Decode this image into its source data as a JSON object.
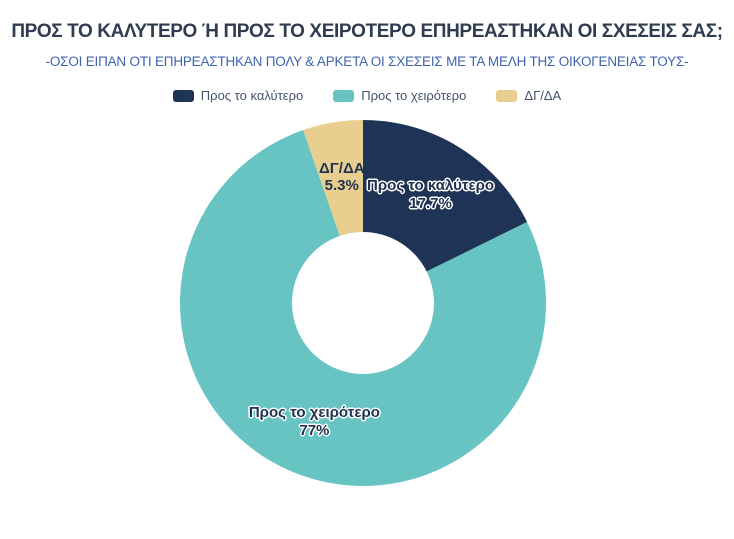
{
  "header": {
    "title": "ΠΡΟΣ ΤΟ ΚΑΛΥΤΕΡΟ Ή ΠΡΟΣ ΤΟ ΧΕΙΡΟΤΕΡΟ ΕΠΗΡΕΑΣΤΗΚΑΝ ΟΙ ΣΧΕΣΕΙΣ ΣΑΣ;",
    "subtitle": "-ΟΣΟΙ ΕΙΠΑΝ ΟΤΙ ΕΠΗΡΕΑΣΤΗΚΑΝ ΠΟΛΥ & ΑΡΚΕΤΑ ΟΙ ΣΧΕΣΕΙΣ ΜΕ ΤΑ ΜΕΛΗ ΤΗΣ ΟΙΚΟΓΕΝΕΙΑΣ ΤΟΥΣ-",
    "title_color": "#303c50",
    "subtitle_color": "#3f63ac"
  },
  "legend": {
    "text_color": "#44546a"
  },
  "chart_data": {
    "type": "pie",
    "subtype": "donut",
    "title": "ΠΡΟΣ ΤΟ ΚΑΛΥΤΕΡΟ Ή ΠΡΟΣ ΤΟ ΧΕΙΡΟΤΕΡΟ ΕΠΗΡΕΑΣΤΗΚΑΝ ΟΙ ΣΧΕΣΕΙΣ ΣΑΣ;",
    "subtitle": "-ΟΣΟΙ ΕΙΠΑΝ ΟΤΙ ΕΠΗΡΕΑΣΤΗΚΑΝ ΠΟΛΥ & ΑΡΚΕΤΑ ΟΙ ΣΧΕΣΕΙΣ ΜΕ ΤΑ ΜΕΛΗ ΤΗΣ ΟΙΚΟΓΕΝΕΙΑΣ ΤΟΥΣ-",
    "legend_position": "top",
    "start_angle_deg": 0,
    "direction": "clockwise",
    "hole_ratio": 0.39,
    "slices": [
      {
        "name": "Προς το καλύτερο",
        "value": 17.7,
        "display": "17.7%",
        "color": "#1e3355",
        "label_outlined": true
      },
      {
        "name": "Προς το χειρότερο",
        "value": 77,
        "display": "77%",
        "color": "#67c4c2",
        "label_outlined": true
      },
      {
        "name": "ΔΓ/ΔΑ",
        "value": 5.3,
        "display": "5.3%",
        "color": "#e8cf90",
        "label_outlined": false
      }
    ]
  }
}
